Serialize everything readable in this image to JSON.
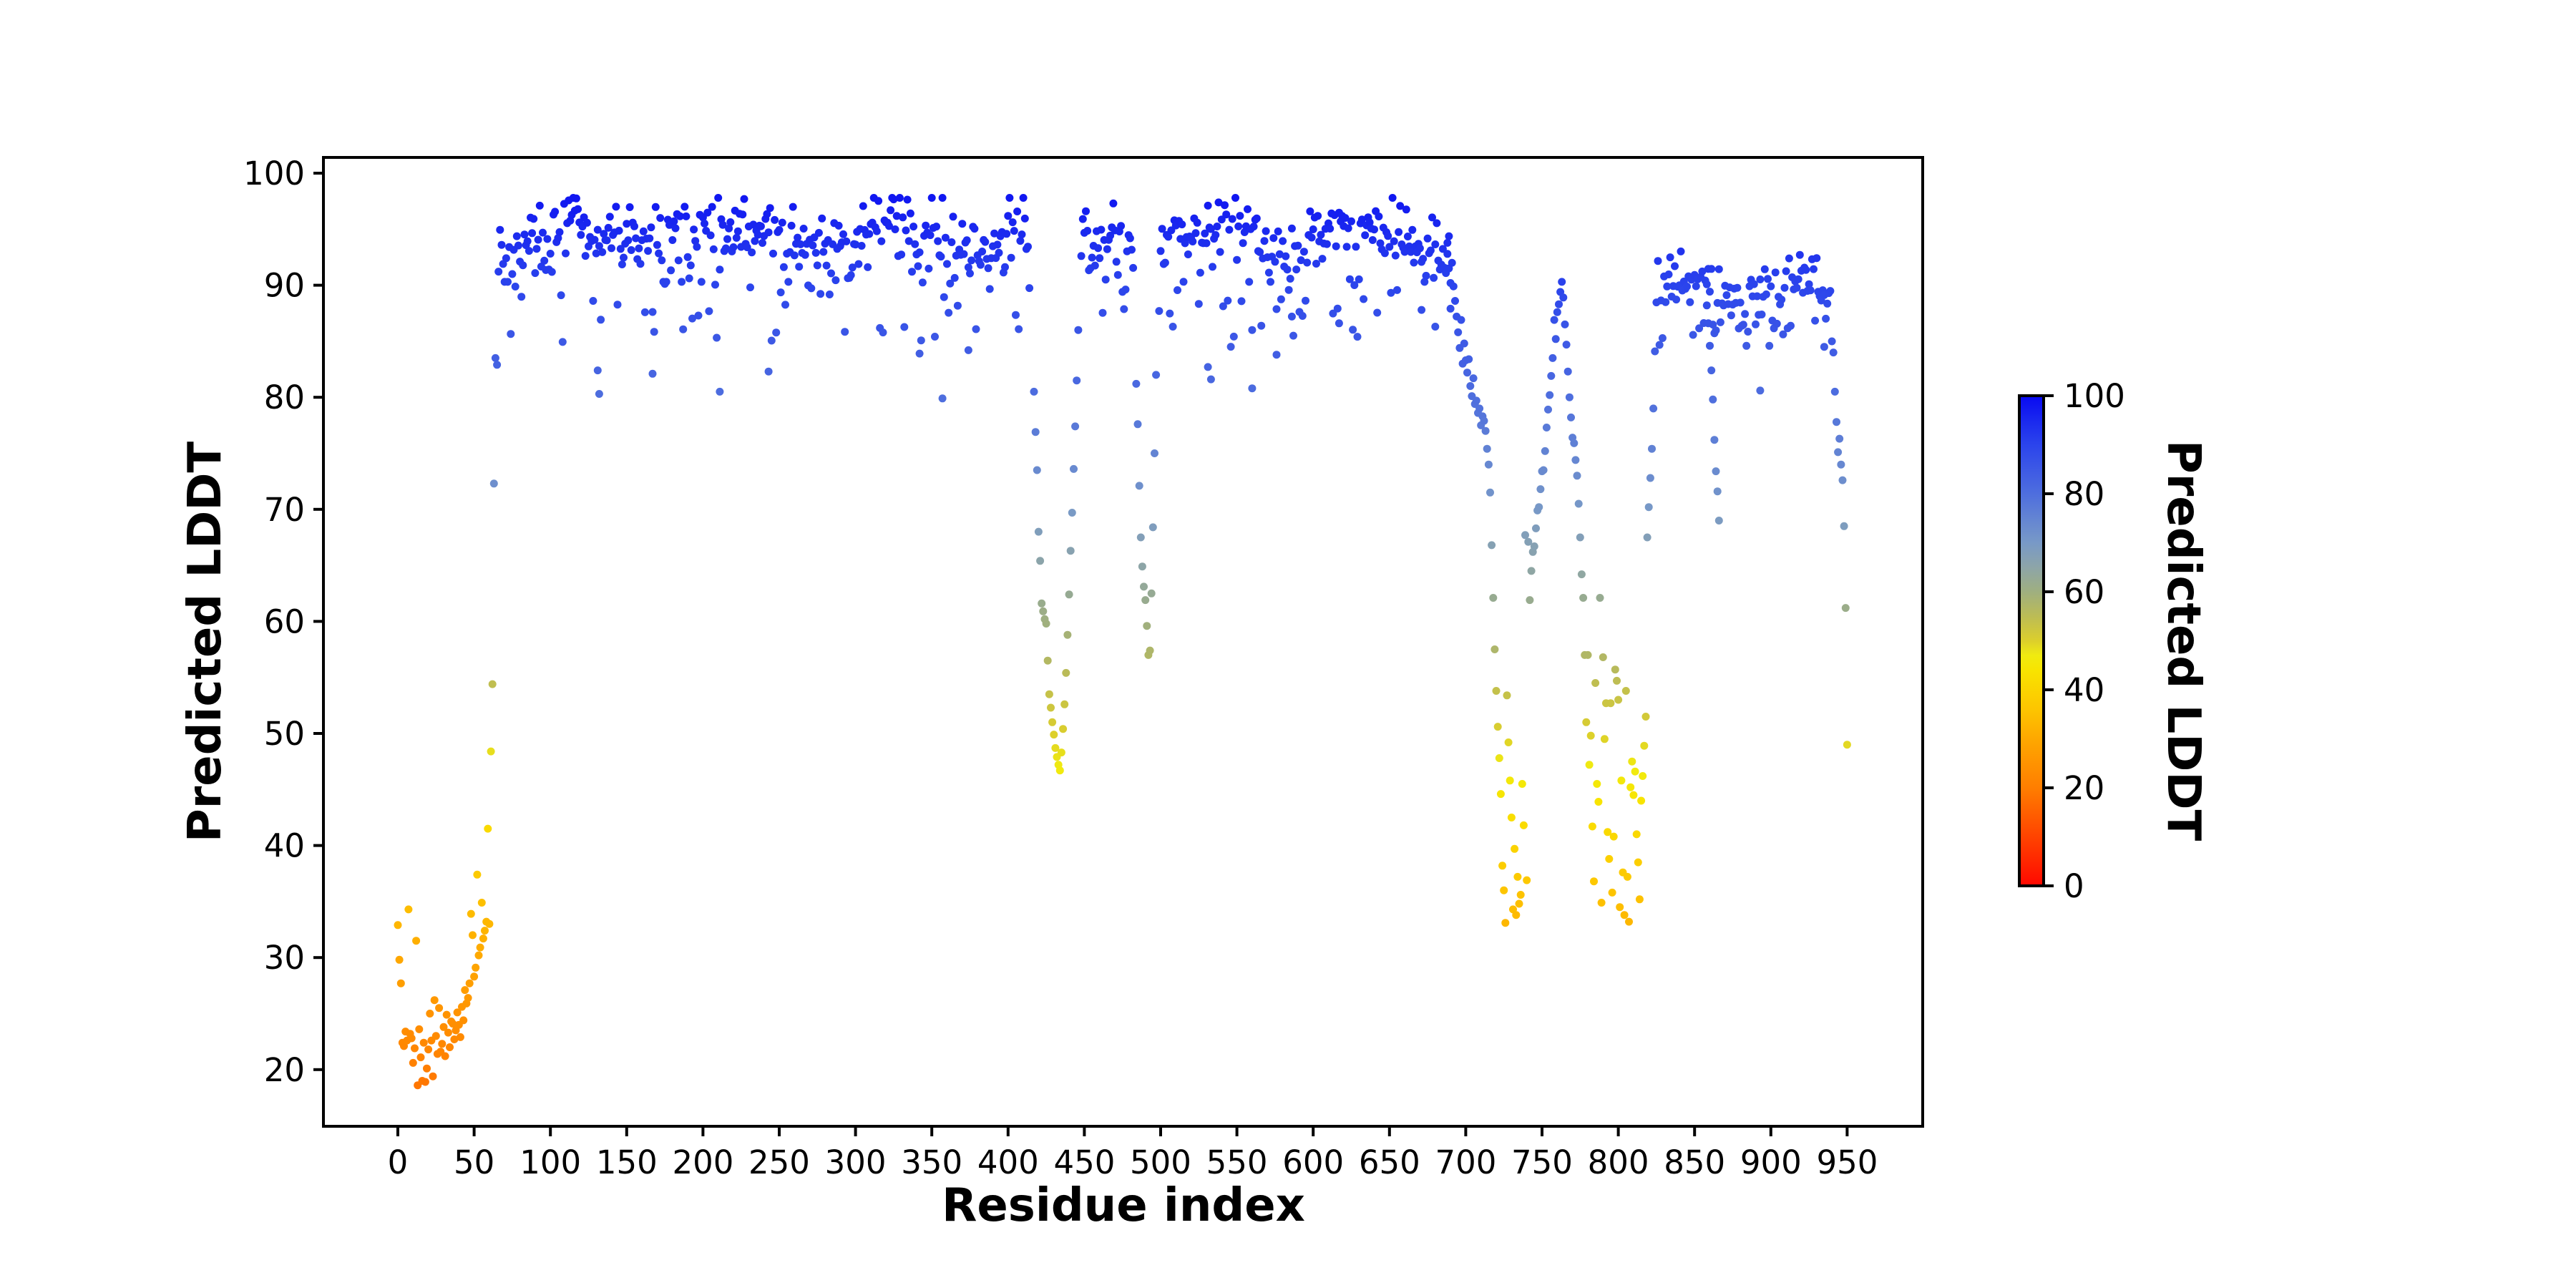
{
  "chart_data": {
    "type": "scatter",
    "title": "",
    "xlabel": "Residue index",
    "ylabel": "Predicted LDDT",
    "x_ticks": [
      0,
      50,
      100,
      150,
      200,
      250,
      300,
      350,
      400,
      450,
      500,
      550,
      600,
      650,
      700,
      750,
      800,
      850,
      900,
      950
    ],
    "y_ticks": [
      20,
      30,
      40,
      50,
      60,
      70,
      80,
      90,
      100
    ],
    "xlim": [
      -48.8,
      999.5
    ],
    "ylim": [
      15,
      101.5
    ],
    "grid": false,
    "marker_diameter_px": 11,
    "colorbar": {
      "label": "Predicted LDDT",
      "ticks": [
        0,
        20,
        40,
        60,
        80,
        100
      ],
      "vmin": 0,
      "vmax": 100
    },
    "colormap_stops": [
      [
        0,
        "#FF0800"
      ],
      [
        5,
        "#FF2600"
      ],
      [
        10,
        "#FF4300"
      ],
      [
        15,
        "#FF6000"
      ],
      [
        20,
        "#FF7E00"
      ],
      [
        25,
        "#FF9300"
      ],
      [
        30,
        "#FEA800"
      ],
      [
        36,
        "#FDC500"
      ],
      [
        40,
        "#FBD400"
      ],
      [
        44,
        "#F8E400"
      ],
      [
        47,
        "#F0EB10"
      ],
      [
        50,
        "#DCCF2C"
      ],
      [
        55,
        "#BCBC55"
      ],
      [
        60,
        "#9FAF80"
      ],
      [
        65,
        "#8DA5A8"
      ],
      [
        70,
        "#7899C7"
      ],
      [
        75,
        "#6384D3"
      ],
      [
        80,
        "#4E6EDE"
      ],
      [
        85,
        "#3D59E5"
      ],
      [
        90,
        "#2B44EC"
      ],
      [
        95,
        "#1A28EF"
      ],
      [
        100,
        "#0909F2"
      ]
    ],
    "points": [
      [
        0,
        32.9
      ],
      [
        1,
        29.8
      ],
      [
        2,
        27.7
      ],
      [
        3,
        22.4
      ],
      [
        4,
        22.1
      ],
      [
        5,
        23.4
      ],
      [
        6,
        22.6
      ],
      [
        7,
        34.3
      ],
      [
        8,
        23.2
      ],
      [
        9,
        22.8
      ],
      [
        10,
        20.6
      ],
      [
        11,
        21.9
      ],
      [
        12,
        31.5
      ],
      [
        13,
        18.6
      ],
      [
        14,
        23.6
      ],
      [
        15,
        21.1
      ],
      [
        16,
        19.0
      ],
      [
        17,
        22.4
      ],
      [
        18,
        18.9
      ],
      [
        19,
        20.1
      ],
      [
        20,
        21.8
      ],
      [
        21,
        25.0
      ],
      [
        22,
        22.6
      ],
      [
        23,
        19.4
      ],
      [
        24,
        26.2
      ],
      [
        25,
        23.0
      ],
      [
        26,
        21.4
      ],
      [
        27,
        25.5
      ],
      [
        28,
        21.6
      ],
      [
        29,
        22.3
      ],
      [
        30,
        23.8
      ],
      [
        31,
        21.2
      ],
      [
        32,
        24.9
      ],
      [
        33,
        23.3
      ],
      [
        34,
        22.0
      ],
      [
        35,
        24.3
      ],
      [
        36,
        24.1
      ],
      [
        37,
        22.7
      ],
      [
        38,
        23.5
      ],
      [
        39,
        25.1
      ],
      [
        40,
        24.0
      ],
      [
        41,
        22.9
      ],
      [
        42,
        25.6
      ],
      [
        43,
        24.4
      ],
      [
        44,
        27.1
      ],
      [
        45,
        25.9
      ],
      [
        46,
        26.4
      ],
      [
        47,
        27.7
      ],
      [
        48,
        33.9
      ],
      [
        49,
        32.0
      ],
      [
        50,
        28.3
      ],
      [
        51,
        29.1
      ],
      [
        52,
        37.4
      ],
      [
        53,
        30.2
      ],
      [
        54,
        30.9
      ],
      [
        55,
        34.9
      ],
      [
        56,
        31.7
      ],
      [
        57,
        32.4
      ],
      [
        58,
        33.2
      ],
      [
        59,
        41.5
      ],
      [
        60,
        33.0
      ],
      [
        61,
        48.4
      ],
      [
        62,
        54.4
      ],
      [
        63,
        72.3
      ],
      [
        64,
        83.5
      ],
      [
        65,
        82.9
      ],
      [
        131,
        82.4
      ],
      [
        132,
        80.3
      ],
      [
        167,
        82.1
      ],
      [
        211,
        80.5
      ],
      [
        243,
        82.3
      ],
      [
        342,
        83.9
      ],
      [
        357,
        79.9
      ],
      [
        374,
        84.2
      ],
      [
        417,
        80.5
      ],
      [
        418,
        76.9
      ],
      [
        419,
        73.5
      ],
      [
        420,
        68.0
      ],
      [
        421,
        65.4
      ],
      [
        422,
        61.6
      ],
      [
        423,
        60.9
      ],
      [
        424,
        60.2
      ],
      [
        425,
        59.8
      ],
      [
        426,
        56.5
      ],
      [
        427,
        53.5
      ],
      [
        428,
        52.3
      ],
      [
        429,
        51.0
      ],
      [
        430,
        49.9
      ],
      [
        431,
        48.7
      ],
      [
        432,
        47.9
      ],
      [
        433,
        47.2
      ],
      [
        434,
        46.7
      ],
      [
        435,
        48.3
      ],
      [
        436,
        50.4
      ],
      [
        437,
        52.6
      ],
      [
        438,
        55.4
      ],
      [
        439,
        58.8
      ],
      [
        440,
        62.4
      ],
      [
        441,
        66.3
      ],
      [
        442,
        69.7
      ],
      [
        443,
        73.6
      ],
      [
        444,
        77.4
      ],
      [
        445,
        81.5
      ],
      [
        446,
        86.0
      ],
      [
        484,
        81.2
      ],
      [
        485,
        77.6
      ],
      [
        486,
        72.1
      ],
      [
        487,
        67.5
      ],
      [
        488,
        64.9
      ],
      [
        489,
        63.1
      ],
      [
        490,
        61.9
      ],
      [
        491,
        59.6
      ],
      [
        492,
        57.0
      ],
      [
        493,
        57.4
      ],
      [
        494,
        62.5
      ],
      [
        495,
        68.4
      ],
      [
        496,
        75.0
      ],
      [
        497,
        82.0
      ],
      [
        531,
        82.7
      ],
      [
        533,
        81.6
      ],
      [
        560,
        80.8
      ],
      [
        576,
        83.8
      ],
      [
        586,
        87.2
      ],
      [
        617,
        86.6
      ],
      [
        671,
        87.8
      ],
      [
        680,
        86.3
      ],
      [
        688,
        92.8
      ],
      [
        689,
        91.5
      ],
      [
        690,
        90.2
      ],
      [
        691,
        92.0
      ],
      [
        692,
        89.9
      ],
      [
        693,
        88.6
      ],
      [
        694,
        87.2
      ],
      [
        695,
        85.8
      ],
      [
        696,
        84.4
      ],
      [
        697,
        86.9
      ],
      [
        698,
        83.0
      ],
      [
        699,
        84.8
      ],
      [
        700,
        83.3
      ],
      [
        701,
        82.2
      ],
      [
        702,
        83.4
      ],
      [
        703,
        81.0
      ],
      [
        704,
        80.1
      ],
      [
        705,
        81.7
      ],
      [
        706,
        79.4
      ],
      [
        707,
        79.7
      ],
      [
        708,
        78.6
      ],
      [
        709,
        79.0
      ],
      [
        710,
        77.5
      ],
      [
        711,
        78.3
      ],
      [
        712,
        77.9
      ],
      [
        713,
        77.0
      ],
      [
        714,
        75.4
      ],
      [
        715,
        74.0
      ],
      [
        716,
        71.5
      ],
      [
        717,
        66.8
      ],
      [
        718,
        62.1
      ],
      [
        719,
        57.5
      ],
      [
        720,
        53.8
      ],
      [
        721,
        50.6
      ],
      [
        722,
        47.8
      ],
      [
        723,
        44.6
      ],
      [
        724,
        38.2
      ],
      [
        725,
        36.0
      ],
      [
        726,
        33.1
      ],
      [
        727,
        53.4
      ],
      [
        728,
        49.2
      ],
      [
        729,
        45.8
      ],
      [
        730,
        42.5
      ],
      [
        731,
        34.3
      ],
      [
        732,
        39.7
      ],
      [
        733,
        33.8
      ],
      [
        734,
        37.2
      ],
      [
        735,
        34.8
      ],
      [
        736,
        35.6
      ],
      [
        737,
        45.5
      ],
      [
        738,
        41.8
      ],
      [
        739,
        67.7
      ],
      [
        740,
        36.9
      ],
      [
        741,
        67.1
      ],
      [
        742,
        61.9
      ],
      [
        743,
        64.5
      ],
      [
        744,
        66.2
      ],
      [
        745,
        66.7
      ],
      [
        746,
        68.3
      ],
      [
        747,
        69.9
      ],
      [
        748,
        70.2
      ],
      [
        749,
        71.8
      ],
      [
        750,
        73.4
      ],
      [
        751,
        73.5
      ],
      [
        752,
        75.2
      ],
      [
        753,
        77.3
      ],
      [
        754,
        78.9
      ],
      [
        755,
        80.2
      ],
      [
        756,
        81.9
      ],
      [
        757,
        83.5
      ],
      [
        758,
        86.9
      ],
      [
        759,
        85.2
      ],
      [
        760,
        87.6
      ],
      [
        761,
        88.3
      ],
      [
        762,
        89.4
      ],
      [
        763,
        90.3
      ],
      [
        764,
        88.9
      ],
      [
        765,
        86.5
      ],
      [
        766,
        84.7
      ],
      [
        767,
        82.3
      ],
      [
        768,
        80.0
      ],
      [
        769,
        78.2
      ],
      [
        770,
        76.4
      ],
      [
        771,
        75.9
      ],
      [
        772,
        74.4
      ],
      [
        773,
        73.0
      ],
      [
        774,
        70.5
      ],
      [
        775,
        67.5
      ],
      [
        776,
        64.2
      ],
      [
        777,
        62.1
      ],
      [
        778,
        57.0
      ],
      [
        779,
        51.0
      ],
      [
        780,
        57.0
      ],
      [
        781,
        47.2
      ],
      [
        782,
        49.8
      ],
      [
        783,
        41.7
      ],
      [
        784,
        36.8
      ],
      [
        785,
        54.5
      ],
      [
        786,
        45.5
      ],
      [
        787,
        43.9
      ],
      [
        788,
        62.1
      ],
      [
        789,
        34.9
      ],
      [
        790,
        56.8
      ],
      [
        791,
        49.5
      ],
      [
        792,
        52.7
      ],
      [
        793,
        41.2
      ],
      [
        794,
        38.8
      ],
      [
        795,
        52.7
      ],
      [
        796,
        35.8
      ],
      [
        797,
        40.8
      ],
      [
        798,
        55.7
      ],
      [
        799,
        54.7
      ],
      [
        800,
        53.0
      ],
      [
        801,
        34.5
      ],
      [
        802,
        45.8
      ],
      [
        803,
        37.6
      ],
      [
        804,
        33.8
      ],
      [
        805,
        53.8
      ],
      [
        806,
        37.2
      ],
      [
        807,
        33.2
      ],
      [
        808,
        45.2
      ],
      [
        809,
        47.5
      ],
      [
        810,
        44.5
      ],
      [
        811,
        46.6
      ],
      [
        812,
        41.0
      ],
      [
        813,
        38.5
      ],
      [
        814,
        35.2
      ],
      [
        815,
        44.0
      ],
      [
        816,
        46.2
      ],
      [
        817,
        48.9
      ],
      [
        818,
        51.5
      ],
      [
        819,
        67.5
      ],
      [
        820,
        70.2
      ],
      [
        821,
        72.8
      ],
      [
        822,
        75.4
      ],
      [
        823,
        79.0
      ],
      [
        824,
        84.1
      ],
      [
        858,
        88.2
      ],
      [
        859,
        86.6
      ],
      [
        860,
        84.6
      ],
      [
        861,
        82.4
      ],
      [
        862,
        79.8
      ],
      [
        863,
        76.2
      ],
      [
        864,
        73.4
      ],
      [
        865,
        71.6
      ],
      [
        866,
        69.0
      ],
      [
        893,
        80.6
      ],
      [
        935,
        84.5
      ],
      [
        941,
        84.0
      ],
      [
        942,
        80.5
      ],
      [
        943,
        77.8
      ],
      [
        944,
        75.1
      ],
      [
        945,
        76.3
      ],
      [
        946,
        74.0
      ],
      [
        947,
        72.6
      ],
      [
        948,
        68.5
      ],
      [
        949,
        61.2
      ],
      [
        950,
        49.0
      ]
    ],
    "generated_bands": [
      {
        "from": 66,
        "to": 690,
        "mean": 94.3,
        "sd": 1.6,
        "min": 90.3,
        "max": 97.8,
        "fringe_frac": 0.15,
        "fringe_min": 84.5,
        "fringe_max": 91.5,
        "wave_amp": 0.9,
        "wave_period": 16,
        "skip": [
          [
            415,
            447
          ],
          [
            483,
            498
          ]
        ],
        "seed": 20240607
      },
      {
        "from": 825,
        "to": 940,
        "mean": 89.2,
        "sd": 1.7,
        "min": 84.9,
        "max": 93.2,
        "fringe_frac": 0.1,
        "fringe_min": 84.4,
        "fringe_max": 87.0,
        "wave_amp": 0.6,
        "wave_period": 13,
        "skip": [],
        "seed": 99
      }
    ]
  }
}
